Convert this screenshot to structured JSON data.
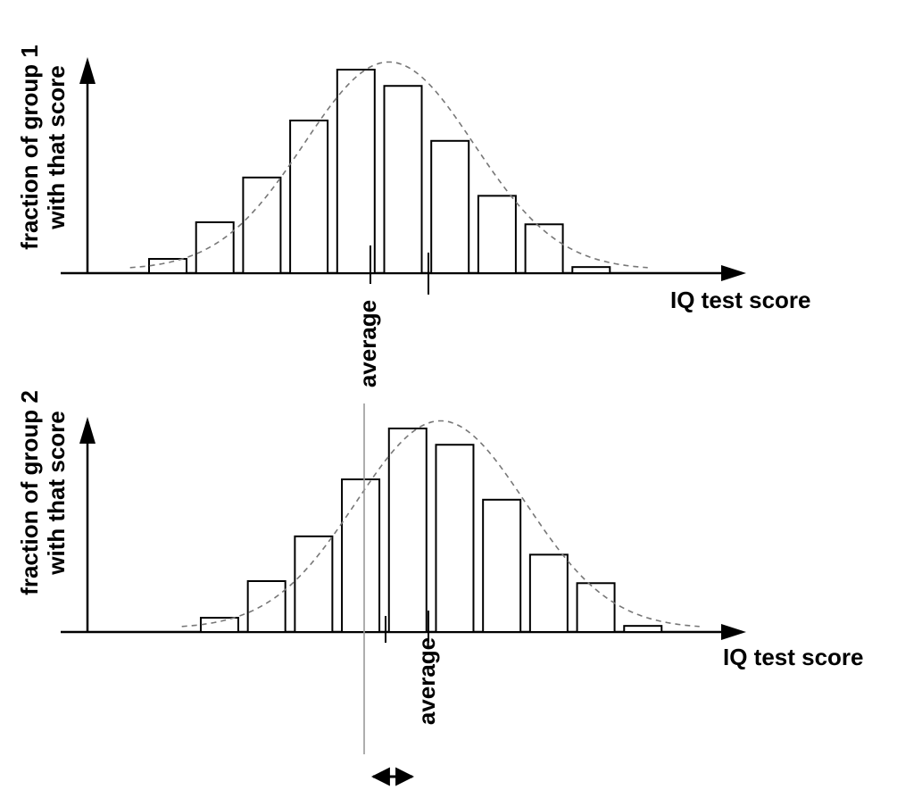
{
  "chart_data": [
    {
      "type": "bar",
      "ylabel_lines": [
        "fraction of group 1",
        "with that score"
      ],
      "xlabel": "IQ test score",
      "average_label": "average",
      "bin_index": [
        0,
        1,
        2,
        3,
        4,
        5,
        6,
        7,
        8,
        9
      ],
      "values": [
        0.07,
        0.25,
        0.47,
        0.75,
        1.0,
        0.92,
        0.65,
        0.38,
        0.24,
        0.03
      ],
      "curve_peak_bin": 4.7,
      "average_bin": 4.7,
      "grid": false,
      "legend": "none"
    },
    {
      "type": "bar",
      "ylabel_lines": [
        "fraction of group 2",
        "with that score"
      ],
      "xlabel": "IQ test score",
      "average_label": "average",
      "bin_index": [
        1.1,
        2.1,
        3.1,
        4.1,
        5.1,
        6.1,
        7.1,
        8.1,
        9.1,
        10.1
      ],
      "values": [
        0.07,
        0.25,
        0.47,
        0.75,
        1.0,
        0.92,
        0.65,
        0.38,
        0.24,
        0.03
      ],
      "curve_peak_bin": 5.8,
      "average_bin": 5.8,
      "grid": false,
      "legend": "none"
    }
  ],
  "colors": {
    "ink": "#000000",
    "curve": "#777777",
    "guide": "#999999",
    "fill": "#ffffff"
  },
  "shift_indicator": "double-headed arrow"
}
